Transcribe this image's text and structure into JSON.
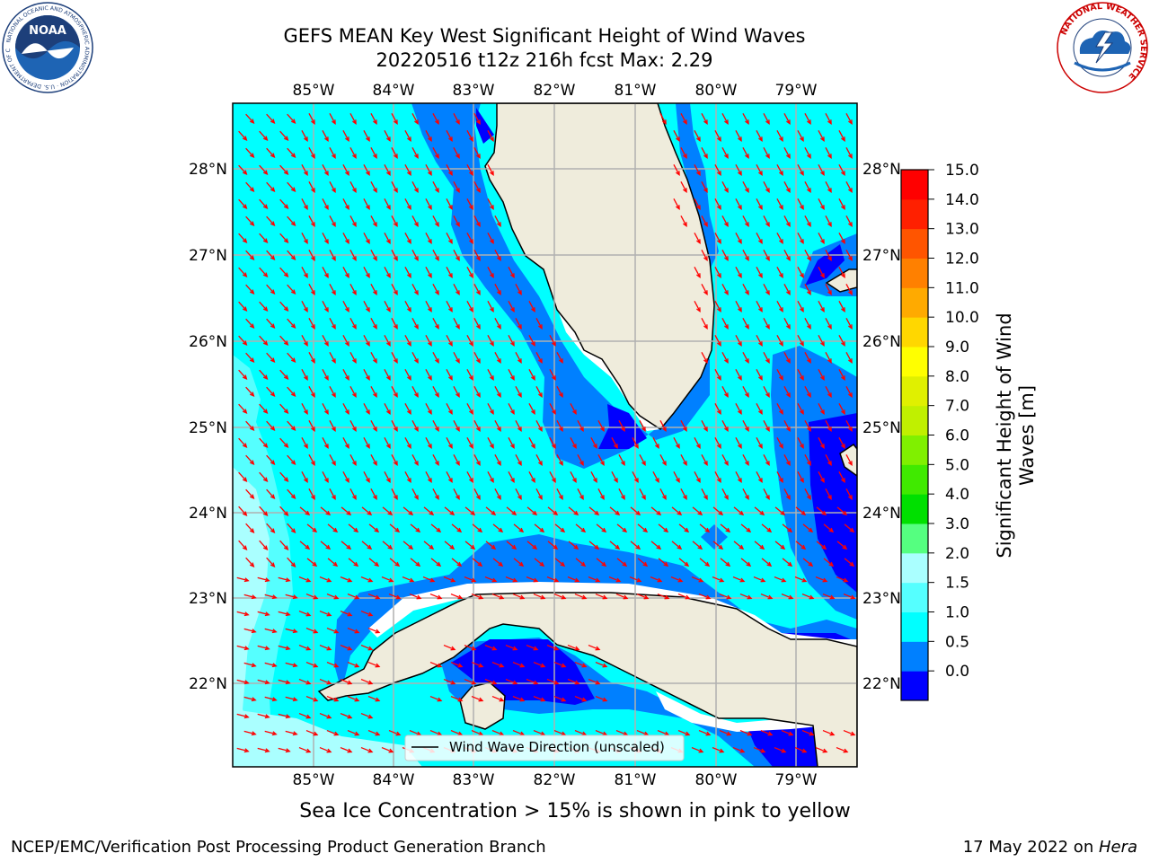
{
  "title": {
    "line1": "GEFS MEAN Key West Significant Height of Wind Waves",
    "line2": "20220516 t12z 216h fcst   Max: 2.29"
  },
  "map": {
    "lon_labels": [
      "85°W",
      "84°W",
      "83°W",
      "82°W",
      "81°W",
      "80°W",
      "79°W"
    ],
    "lat_labels": [
      "28°N",
      "27°N",
      "26°N",
      "25°N",
      "24°N",
      "23°N",
      "22°N"
    ],
    "colors": {
      "ocean_base": "#00ffff",
      "ocean_light": "#55ffff",
      "ocean_lighter": "#aaffff",
      "shelf": "#0080ff",
      "deep_low": "#0000ff",
      "land": "#efecdc",
      "arrow": "#ff0000",
      "grid": "#b0b0b0"
    },
    "legend_text": "Wind Wave Direction (unscaled)"
  },
  "colorbar": {
    "ticks": [
      "15.0",
      "14.0",
      "13.0",
      "12.0",
      "11.0",
      "10.0",
      "9.0",
      "8.0",
      "7.0",
      "6.0",
      "5.0",
      "4.0",
      "3.0",
      "2.0",
      "1.5",
      "1.0",
      "0.5",
      "0.0"
    ],
    "colors": [
      "#0000ff",
      "#0080ff",
      "#00ffff",
      "#55ffff",
      "#aaffff",
      "#55ff80",
      "#00e000",
      "#40ea00",
      "#80f000",
      "#c0f000",
      "#e0f000",
      "#ffff00",
      "#ffd700",
      "#ffaa00",
      "#ff8000",
      "#ff5500",
      "#ff2000",
      "#ff0000"
    ],
    "label_line1": "Significant Height of Wind",
    "label_line2": "Waves [m]"
  },
  "note": "Sea Ice Concentration > 15% is shown in pink to yellow",
  "footer": {
    "left": "NCEP/EMC/Verification Post Processing Product Generation Branch",
    "date": "17 May 2022 on ",
    "machine": "Hera"
  },
  "logos": {
    "noaa_text": "NOAA",
    "noaa_ring_text": "NATIONAL OCEANIC AND ATMOSPHERIC ADMINISTRATION · U.S. DEPARTMENT OF COMMERCE",
    "nws_ring_text": "NATIONAL WEATHER SERVICE"
  }
}
